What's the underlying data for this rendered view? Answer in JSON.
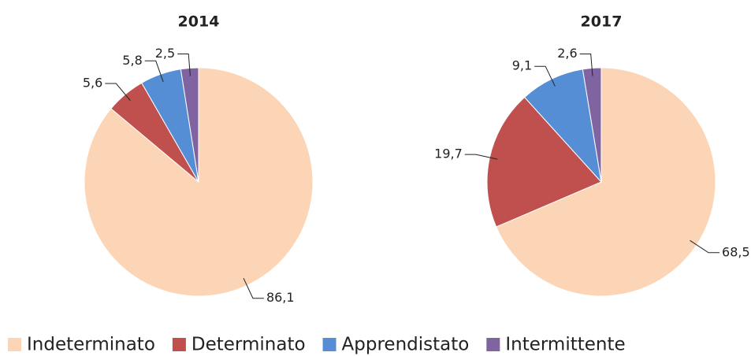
{
  "chart_data": [
    {
      "type": "pie",
      "title": "2014",
      "values": [
        86.1,
        5.6,
        5.8,
        2.5
      ],
      "value_labels": [
        "86,1",
        "5,6",
        "5,8",
        "2,5"
      ]
    },
    {
      "type": "pie",
      "title": "2017",
      "values": [
        68.5,
        19.7,
        9.1,
        2.6
      ],
      "value_labels": [
        "68,5",
        "19,7",
        "9,1",
        "2,6"
      ]
    }
  ],
  "legend": {
    "categories": [
      "Indeterminato",
      "Determinato",
      "Apprendistato",
      "Intermittente"
    ],
    "colors": [
      "#fbd5b5",
      "#c0504d",
      "#558ed5",
      "#8064a2"
    ]
  }
}
